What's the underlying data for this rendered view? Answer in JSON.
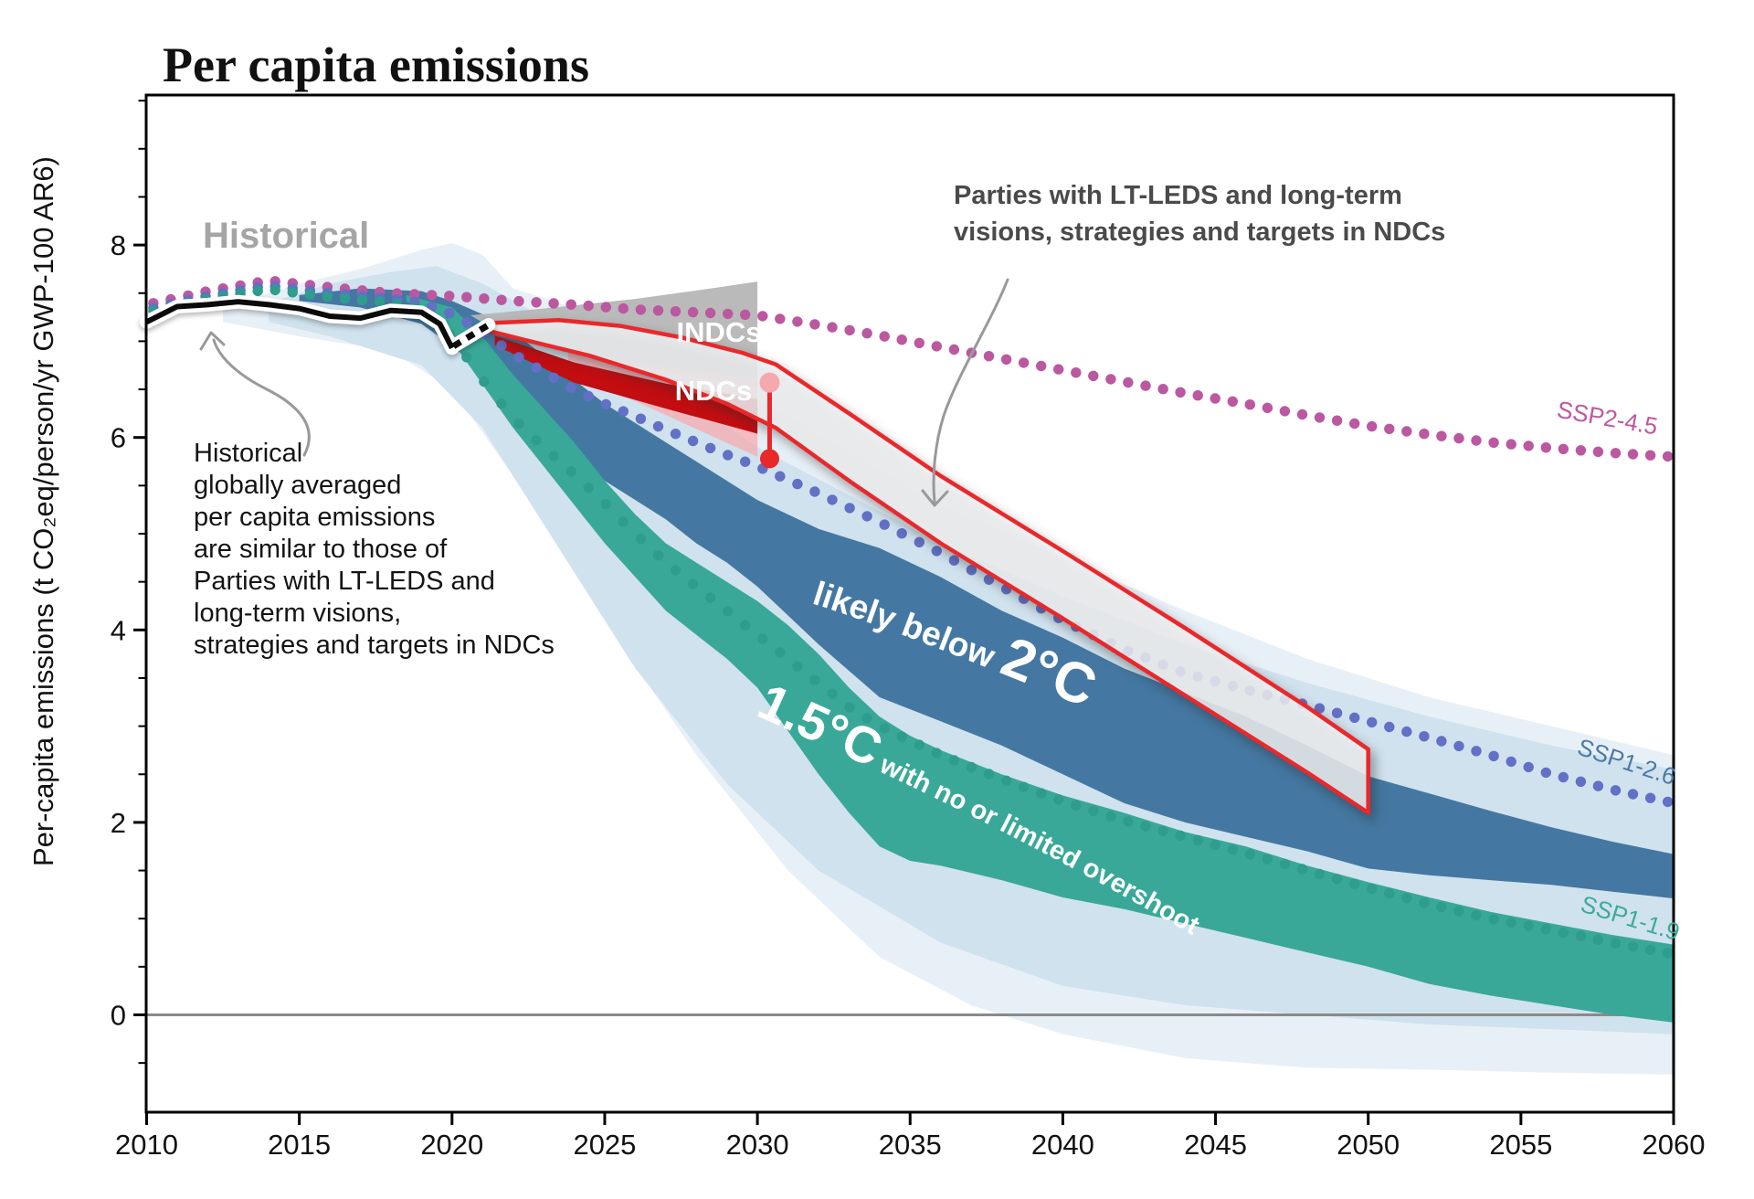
{
  "title": "Per capita emissions",
  "y_axis_label": "Per-capita emissions (t CO₂eq/person/yr GWP-100 AR6)",
  "labels": {
    "historical": "Historical",
    "indcs": "INDCs",
    "ndcs": "NDCs",
    "likely_prefix": "likely below ",
    "likely_big": "2°C",
    "one5_big": "1.5°C",
    "one5_rest": " with no or limited overshoot",
    "ssp2_45": "SSP2-4.5",
    "ssp1_26": "SSP1-2.6",
    "ssp1_19": "SSP1-1.9"
  },
  "annotations": {
    "left": [
      "Historical",
      "globally averaged",
      "per capita emissions",
      "are similar to those of",
      "Parties with LT-LEDS and",
      "long-term visions,",
      "strategies and targets in NDCs"
    ],
    "right": [
      "Parties with LT-LEDS and long-term",
      "visions, strategies and targets in NDCs"
    ]
  },
  "colors": {
    "pale_outer": "#e8f0f7",
    "pale_inner": "#d0e2ee",
    "band_2c": "#4478a2",
    "band_15c": "#39a898",
    "ssp2_dots": "#bb58a0",
    "ssp2_label": "#c0579e",
    "ssp1_26_dots": "#6270c5",
    "ssp1_26_label": "#4d7aa6",
    "ssp1_19_dots": "#2e9d8e",
    "ssp1_19_label": "#3cab9b",
    "red": "#e9282b",
    "dark_red": "#c20d11",
    "pink": "#f4afb3",
    "pink_dot": "#f5a9ac",
    "gray_wedge": "#b6b6b6",
    "white_band": "#f6f8fa",
    "historical": "#0b0b0b",
    "zero_line": "#8a8a8a",
    "arrow": "#999999",
    "axis": "#000000"
  },
  "chart_data": {
    "type": "area",
    "title": "Per capita emissions",
    "ylabel": "Per-capita emissions (t CO2eq/person/yr GWP-100 AR6)",
    "xlim": [
      2010,
      2060
    ],
    "ylim": [
      -1.0,
      9.55
    ],
    "x_ticks": [
      2010,
      2015,
      2020,
      2025,
      2030,
      2035,
      2040,
      2045,
      2050,
      2055,
      2060
    ],
    "y_ticks": [
      0,
      2,
      4,
      6,
      8
    ],
    "y_minor_step": 0.5,
    "grid": false,
    "historical": {
      "x": [
        2010,
        2011,
        2012,
        2013,
        2014,
        2015,
        2016,
        2017,
        2018,
        2019,
        2019.6,
        2020
      ],
      "y": [
        7.2,
        7.36,
        7.38,
        7.41,
        7.38,
        7.34,
        7.26,
        7.24,
        7.32,
        7.3,
        7.18,
        6.93
      ]
    },
    "historical_dashed": {
      "x": [
        2020.05,
        2021.2
      ],
      "y": [
        6.95,
        7.17
      ]
    },
    "bands": [
      {
        "id": "ssp_range_outer",
        "x_top": [
          2012.5,
          2015,
          2017,
          2019,
          2020,
          2021,
          2022,
          2024,
          2026,
          2028,
          2030,
          2033,
          2036,
          2040,
          2044,
          2048,
          2052,
          2056,
          2060
        ],
        "top": [
          7.35,
          7.6,
          7.75,
          7.95,
          8.02,
          7.9,
          7.55,
          7.35,
          7.2,
          6.8,
          6.4,
          5.85,
          5.3,
          4.75,
          4.2,
          3.7,
          3.3,
          3.0,
          2.7
        ],
        "x_bottom": [
          2060,
          2056,
          2052,
          2048,
          2044,
          2040,
          2037,
          2034,
          2031,
          2028,
          2025,
          2022,
          2020,
          2018,
          2015,
          2012.5
        ],
        "bottom": [
          -0.62,
          -0.6,
          -0.57,
          -0.55,
          -0.45,
          -0.2,
          0.1,
          0.6,
          1.5,
          2.7,
          4.1,
          5.6,
          6.5,
          6.9,
          7.05,
          7.2
        ]
      },
      {
        "id": "ssp_range_inner",
        "x_top": [
          2014,
          2016,
          2018,
          2019.5,
          2021,
          2023,
          2025,
          2027,
          2030,
          2033,
          2036,
          2040,
          2044,
          2048,
          2052,
          2056,
          2060
        ],
        "top": [
          7.4,
          7.6,
          7.72,
          7.78,
          7.6,
          7.25,
          6.95,
          6.55,
          5.9,
          5.4,
          4.9,
          4.35,
          3.85,
          3.45,
          3.1,
          2.8,
          2.55
        ],
        "x_bottom": [
          2060,
          2056,
          2052,
          2048,
          2044,
          2040,
          2036,
          2032,
          2029,
          2026,
          2023,
          2021,
          2019,
          2016,
          2014
        ],
        "bottom": [
          -0.2,
          -0.15,
          -0.1,
          0.0,
          0.1,
          0.3,
          0.75,
          1.5,
          2.4,
          3.6,
          5.1,
          6.1,
          6.75,
          7.05,
          7.2
        ]
      },
      {
        "id": "likely_below_2c",
        "label": "likely below 2°C",
        "x_top": [
          2015,
          2017,
          2019,
          2020,
          2021,
          2022,
          2023,
          2024,
          2025,
          2026,
          2027,
          2028,
          2029,
          2030,
          2032,
          2034,
          2036,
          2038,
          2040,
          2042,
          2044,
          2046,
          2048,
          2050,
          2052,
          2054,
          2056,
          2058,
          2060
        ],
        "top": [
          7.48,
          7.55,
          7.52,
          7.42,
          7.28,
          7.1,
          6.85,
          6.6,
          6.35,
          6.15,
          5.95,
          5.75,
          5.55,
          5.35,
          5.05,
          4.85,
          4.55,
          4.2,
          3.92,
          3.6,
          3.35,
          3.1,
          2.8,
          2.48,
          2.3,
          2.12,
          1.95,
          1.8,
          1.67
        ],
        "x_bottom": [
          2060,
          2058,
          2056,
          2054,
          2052,
          2050,
          2048,
          2046,
          2044,
          2042,
          2040,
          2038,
          2036,
          2034,
          2032,
          2030,
          2029,
          2028,
          2027,
          2026,
          2025,
          2024,
          2023,
          2022,
          2021,
          2020,
          2019,
          2017,
          2015
        ],
        "bottom": [
          1.21,
          1.28,
          1.35,
          1.4,
          1.45,
          1.52,
          1.7,
          1.85,
          2.0,
          2.2,
          2.5,
          2.8,
          3.05,
          3.3,
          3.85,
          4.45,
          4.7,
          4.9,
          5.15,
          5.35,
          5.55,
          5.8,
          6.1,
          6.4,
          6.7,
          6.95,
          7.18,
          7.35,
          7.42
        ]
      },
      {
        "id": "c15_no_limited_overshoot",
        "label": "1.5°C with no or limited overshoot",
        "x_top": [
          2018.5,
          2020,
          2021,
          2022,
          2023,
          2024,
          2025,
          2026,
          2027,
          2028,
          2029,
          2030,
          2031,
          2032,
          2033,
          2034,
          2035,
          2036,
          2038,
          2040,
          2042,
          2044,
          2046,
          2048,
          2050,
          2052,
          2054,
          2056,
          2058,
          2060
        ],
        "top": [
          7.48,
          7.35,
          7.05,
          6.65,
          6.3,
          5.95,
          5.55,
          5.2,
          4.9,
          4.7,
          4.5,
          4.3,
          4.05,
          3.75,
          3.4,
          3.1,
          2.9,
          2.75,
          2.5,
          2.28,
          2.1,
          1.9,
          1.75,
          1.55,
          1.38,
          1.22,
          1.07,
          0.95,
          0.83,
          0.73
        ],
        "x_bottom": [
          2060,
          2058,
          2056,
          2054,
          2052,
          2050,
          2048,
          2046,
          2044,
          2042,
          2040,
          2038,
          2036,
          2035,
          2034,
          2033,
          2032,
          2031,
          2030,
          2029,
          2028,
          2027,
          2026,
          2025,
          2024,
          2023,
          2022,
          2021,
          2020,
          2018.5
        ],
        "bottom": [
          -0.08,
          0.0,
          0.1,
          0.2,
          0.32,
          0.5,
          0.65,
          0.8,
          0.95,
          1.1,
          1.22,
          1.4,
          1.55,
          1.6,
          1.75,
          2.1,
          2.5,
          2.95,
          3.4,
          3.7,
          3.95,
          4.2,
          4.55,
          4.9,
          5.3,
          5.7,
          6.1,
          6.55,
          7.0,
          7.42
        ]
      }
    ],
    "wedges": [
      {
        "id": "indcs",
        "label": "INDCs",
        "points": [
          [
            2020.6,
            7.27
          ],
          [
            2023,
            7.34
          ],
          [
            2026,
            7.44
          ],
          [
            2028.5,
            7.55
          ],
          [
            2030,
            7.62
          ],
          [
            2030,
            6.52
          ],
          [
            2027,
            6.68
          ],
          [
            2024,
            6.9
          ],
          [
            2021.4,
            7.12
          ]
        ]
      },
      {
        "id": "ndcs_range",
        "label": "NDCs",
        "points": [
          [
            2023.8,
            6.88
          ],
          [
            2030,
            6.6
          ],
          [
            2030,
            5.8
          ],
          [
            2025,
            6.52
          ],
          [
            2023.8,
            6.78
          ]
        ]
      },
      {
        "id": "ndcs_central",
        "points": [
          [
            2021.4,
            7.06
          ],
          [
            2024,
            6.78
          ],
          [
            2027,
            6.56
          ],
          [
            2030,
            6.4
          ],
          [
            2030,
            6.04
          ],
          [
            2027,
            6.3
          ],
          [
            2024,
            6.57
          ],
          [
            2021.4,
            6.96
          ]
        ]
      }
    ],
    "lt_leds_band": {
      "label": "Parties with LT-LEDS and long-term visions, strategies and targets in NDCs",
      "x_top": [
        2021.3,
        2023.5,
        2025.5,
        2027.5,
        2029.5,
        2030.6,
        2033,
        2036,
        2040,
        2044,
        2048,
        2050
      ],
      "top": [
        7.19,
        7.22,
        7.16,
        7.04,
        6.88,
        6.76,
        6.25,
        5.6,
        4.82,
        4.02,
        3.2,
        2.76
      ],
      "x_bottom": [
        2050,
        2048,
        2044,
        2040,
        2036,
        2033,
        2030.6,
        2029,
        2027,
        2024.5,
        2022.3,
        2021.3
      ],
      "bottom": [
        2.1,
        2.52,
        3.32,
        4.12,
        4.9,
        5.55,
        6.1,
        6.35,
        6.6,
        6.85,
        7.02,
        7.1
      ]
    },
    "dotted_series": [
      {
        "id": "ssp2_45",
        "label": "SSP2-4.5",
        "x": [
          2010,
          2012,
          2014,
          2016,
          2018,
          2020,
          2022,
          2024,
          2026,
          2028,
          2030,
          2032,
          2034,
          2036,
          2038,
          2040,
          2042,
          2044,
          2046,
          2048,
          2050,
          2052,
          2054,
          2056,
          2058,
          2060
        ],
        "y": [
          7.38,
          7.52,
          7.63,
          7.56,
          7.5,
          7.47,
          7.42,
          7.38,
          7.33,
          7.3,
          7.27,
          7.17,
          7.06,
          6.94,
          6.82,
          6.7,
          6.58,
          6.46,
          6.35,
          6.23,
          6.12,
          6.03,
          5.95,
          5.89,
          5.84,
          5.8
        ]
      },
      {
        "id": "ssp1_26",
        "label": "SSP1-2.6",
        "x": [
          2010,
          2012,
          2014,
          2016,
          2018,
          2019,
          2020,
          2021,
          2022,
          2023,
          2024,
          2025,
          2026,
          2027,
          2028,
          2029,
          2030,
          2032,
          2034,
          2036,
          2038,
          2040,
          2042,
          2044,
          2046,
          2048,
          2050,
          2052,
          2054,
          2056,
          2058,
          2060
        ],
        "y": [
          7.33,
          7.47,
          7.58,
          7.5,
          7.44,
          7.4,
          7.28,
          7.1,
          6.87,
          6.68,
          6.5,
          6.35,
          6.22,
          6.08,
          5.95,
          5.82,
          5.7,
          5.42,
          5.12,
          4.8,
          4.45,
          4.1,
          3.8,
          3.55,
          3.38,
          3.22,
          3.05,
          2.88,
          2.7,
          2.5,
          2.34,
          2.2
        ]
      },
      {
        "id": "ssp1_19",
        "label": "SSP1-1.9",
        "x": [
          2010,
          2012,
          2014,
          2016,
          2018,
          2019,
          2020,
          2021,
          2022,
          2023,
          2024,
          2025,
          2026,
          2027,
          2028,
          2029,
          2030,
          2031,
          2032,
          2033,
          2034,
          2035,
          2036,
          2038,
          2040,
          2042,
          2044,
          2046,
          2048,
          2050,
          2052,
          2054,
          2056,
          2058,
          2060
        ],
        "y": [
          7.3,
          7.44,
          7.54,
          7.46,
          7.4,
          7.33,
          7.05,
          6.6,
          6.2,
          5.9,
          5.62,
          5.32,
          5.0,
          4.7,
          4.45,
          4.2,
          3.95,
          3.7,
          3.45,
          3.2,
          3.0,
          2.85,
          2.7,
          2.45,
          2.22,
          2.02,
          1.85,
          1.68,
          1.5,
          1.32,
          1.15,
          1.0,
          0.88,
          0.75,
          0.63
        ]
      }
    ],
    "ndc_marker": {
      "x": 2030.4,
      "low": 5.78,
      "high": 6.57
    }
  }
}
